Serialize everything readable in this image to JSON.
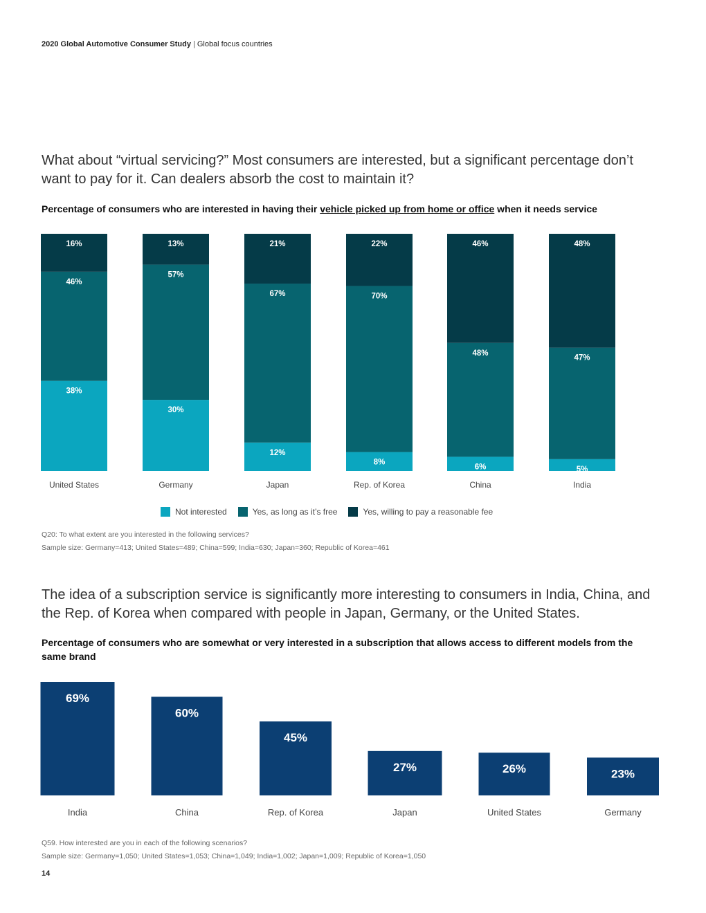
{
  "header": {
    "title": "2020 Global Automotive Consumer Study",
    "separator": "|",
    "section": "Global focus countries"
  },
  "section1": {
    "headline": "What about “virtual servicing?” Most consumers are interested, but a significant percentage don’t want to pay for it. Can dealers absorb the cost to maintain it?",
    "chart_title_before": "Percentage of consumers who are interested in having their ",
    "chart_title_underlined": "vehicle picked up from home or office",
    "chart_title_after": " when it needs service",
    "question": "Q20: To what extent are you interested in the following services?",
    "sample": "Sample size: Germany=413; United States=489; China=599; India=630; Japan=360; Republic of Korea=461"
  },
  "section2": {
    "headline": "The idea of a subscription service is significantly more interesting to consumers in India, China, and the Rep. of Korea when compared with people in Japan, Germany, or the United States.",
    "chart_title": "Percentage of consumers who are somewhat or very interested in a subscription that allows access to different models from the same brand",
    "question": "Q59. How interested are you in each of the following scenarios?",
    "sample": "Sample size: Germany=1,050; United States=1,053; China=1,049; India=1,002; Japan=1,009; Republic of Korea=1,050"
  },
  "page_number": "14",
  "chart_data": [
    {
      "type": "bar",
      "stacked": true,
      "categories": [
        "United States",
        "Germany",
        "Japan",
        "Rep. of Korea",
        "China",
        "India"
      ],
      "series": [
        {
          "name": "Not interested",
          "color": "#0ba6bf",
          "values": [
            38,
            30,
            12,
            8,
            6,
            5
          ]
        },
        {
          "name": "Yes, as long as it’s free",
          "color": "#07646f",
          "values": [
            46,
            57,
            67,
            70,
            48,
            47
          ]
        },
        {
          "name": "Yes, willing to pay a reasonable fee",
          "color": "#053b48",
          "values": [
            16,
            13,
            21,
            22,
            46,
            48
          ]
        }
      ],
      "value_suffix": "%",
      "ylim": [
        0,
        100
      ],
      "grid": false,
      "legend": "bottom"
    },
    {
      "type": "bar",
      "categories": [
        "India",
        "China",
        "Rep. of Korea",
        "Japan",
        "United States",
        "Germany"
      ],
      "values": [
        69,
        60,
        45,
        27,
        26,
        23
      ],
      "value_suffix": "%",
      "color": "#0c3f73",
      "ylim": [
        0,
        69
      ],
      "grid": false
    }
  ]
}
